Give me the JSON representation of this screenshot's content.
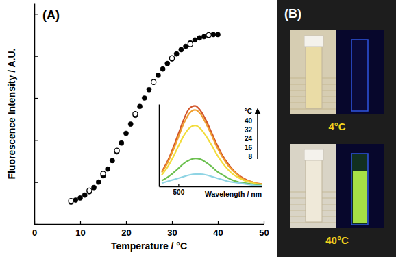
{
  "chart_data": [
    {
      "type": "scatter",
      "title": "(A)",
      "x_label": "Temperature / °C",
      "y_label": "Fluorescence Intensity / A.U.",
      "xlim": [
        0,
        50
      ],
      "xticks": [
        0,
        10,
        20,
        30,
        40,
        50
      ],
      "ylim": [
        0,
        5.25
      ],
      "yticks": [
        0,
        1,
        2,
        3,
        4,
        5
      ],
      "tick_labels": "x",
      "series": [
        {
          "color": "#000000",
          "marker": "filled",
          "x": [
            8,
            9,
            10,
            11,
            12,
            13,
            14,
            15,
            16,
            17,
            18,
            19,
            20,
            21,
            22,
            23,
            24,
            25,
            26,
            27,
            28,
            29,
            30,
            31,
            32,
            33,
            34,
            35,
            36,
            37,
            38,
            39,
            40
          ],
          "values": [
            0.52,
            0.57,
            0.62,
            0.69,
            0.77,
            0.87,
            1.0,
            1.15,
            1.31,
            1.51,
            1.72,
            1.93,
            2.16,
            2.38,
            2.59,
            2.8,
            3.0,
            3.2,
            3.38,
            3.54,
            3.69,
            3.82,
            3.93,
            4.05,
            4.15,
            4.23,
            4.31,
            4.38,
            4.43,
            4.46,
            4.49,
            4.51,
            4.51
          ]
        },
        {
          "color": "#000000",
          "marker": "open",
          "x": [
            8,
            12,
            15,
            18,
            22,
            26,
            30,
            34,
            38
          ],
          "values": [
            0.55,
            0.8,
            1.2,
            1.75,
            2.62,
            3.38,
            3.95,
            4.28,
            4.5
          ]
        }
      ]
    },
    {
      "type": "line",
      "x_label": "Wavelength / nm",
      "legend_title": "°C",
      "xlim": [
        465,
        650
      ],
      "xticks": [
        500
      ],
      "ylim": [
        0,
        1
      ],
      "yticks": [],
      "tick_labels": "x",
      "x": [
        470,
        480,
        490,
        500,
        510,
        520,
        530,
        540,
        550,
        560,
        570,
        580,
        590,
        600,
        610,
        620,
        630,
        640,
        650
      ],
      "series": [
        {
          "name": "40",
          "color": "#d2552a",
          "values": [
            0.18,
            0.3,
            0.46,
            0.64,
            0.82,
            0.95,
            0.98,
            0.92,
            0.8,
            0.65,
            0.5,
            0.37,
            0.27,
            0.19,
            0.13,
            0.09,
            0.06,
            0.04,
            0.03
          ]
        },
        {
          "name": "32",
          "color": "#f0a030",
          "values": [
            0.17,
            0.28,
            0.43,
            0.6,
            0.77,
            0.89,
            0.93,
            0.88,
            0.76,
            0.62,
            0.47,
            0.35,
            0.25,
            0.18,
            0.12,
            0.08,
            0.06,
            0.04,
            0.03
          ]
        },
        {
          "name": "24",
          "color": "#f2dc3c",
          "values": [
            0.14,
            0.23,
            0.35,
            0.49,
            0.62,
            0.71,
            0.74,
            0.7,
            0.61,
            0.5,
            0.38,
            0.28,
            0.2,
            0.14,
            0.1,
            0.07,
            0.05,
            0.03,
            0.02
          ]
        },
        {
          "name": "16",
          "color": "#6cc050",
          "values": [
            0.07,
            0.11,
            0.16,
            0.22,
            0.28,
            0.32,
            0.34,
            0.33,
            0.29,
            0.24,
            0.18,
            0.14,
            0.1,
            0.07,
            0.05,
            0.04,
            0.03,
            0.02,
            0.01
          ]
        },
        {
          "name": "8",
          "color": "#8fd4e4",
          "values": [
            0.04,
            0.06,
            0.08,
            0.1,
            0.12,
            0.14,
            0.15,
            0.15,
            0.14,
            0.12,
            0.1,
            0.08,
            0.06,
            0.05,
            0.04,
            0.03,
            0.02,
            0.01,
            0.01
          ]
        }
      ]
    }
  ],
  "panel_b": {
    "label": "(B)",
    "captions": [
      "4°C",
      "40°C"
    ]
  }
}
